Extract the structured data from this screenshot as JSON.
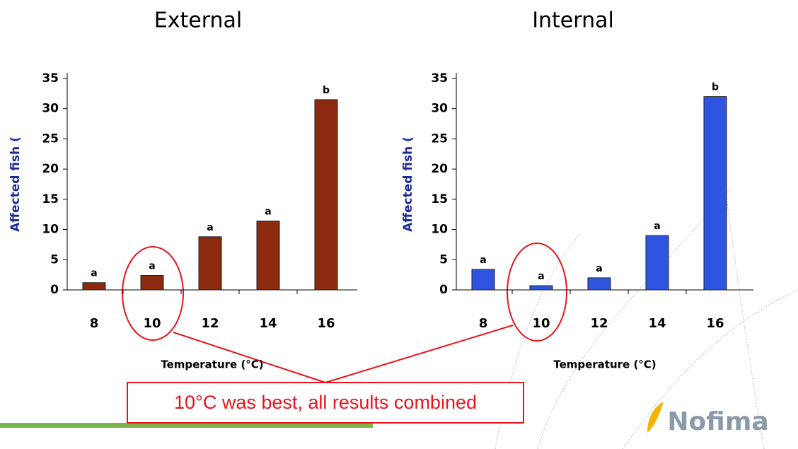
{
  "chart_data": [
    {
      "type": "bar",
      "title": "External",
      "x_label": "Temperature (°C)",
      "y_label": "Affected fish (",
      "categories": [
        "8",
        "10",
        "12",
        "14",
        "16"
      ],
      "values": [
        1.2,
        2.4,
        8.8,
        11.4,
        31.5
      ],
      "bar_labels": [
        "a",
        "a",
        "a",
        "a",
        "b"
      ],
      "color": "#8b2a0e",
      "ylim": [
        0,
        35
      ],
      "yticks": [
        0,
        5,
        10,
        15,
        20,
        25,
        30,
        35
      ]
    },
    {
      "type": "bar",
      "title": "Internal",
      "x_label": "Temperature (°C)",
      "y_label": "Affected fish (",
      "categories": [
        "8",
        "10",
        "12",
        "14",
        "16"
      ],
      "values": [
        3.4,
        0.7,
        2.0,
        9.0,
        32.0
      ],
      "bar_labels": [
        "a",
        "a",
        "a",
        "a",
        "b"
      ],
      "color": "#2f55e0",
      "ylim": [
        0,
        35
      ],
      "yticks": [
        0,
        5,
        10,
        15,
        20,
        25,
        30,
        35
      ]
    }
  ],
  "annotation": "10°C was best, all results combined",
  "logo": "Nofima"
}
